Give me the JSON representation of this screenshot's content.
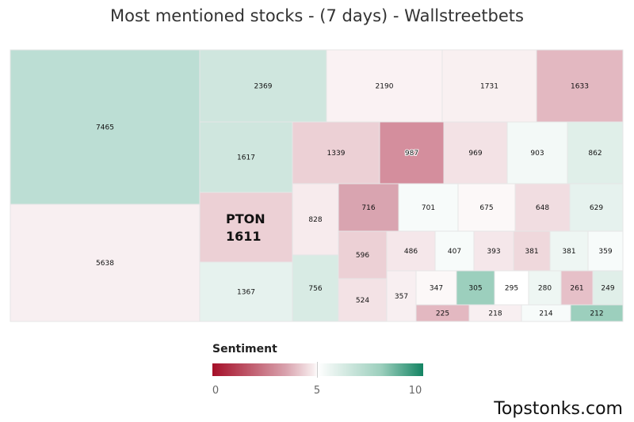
{
  "chart_data": {
    "type": "treemap",
    "title": "Most mentioned stocks - (7 days) - Wallstreetbets",
    "items": [
      {
        "label": "7465",
        "value": 7465,
        "color": "#bcded4"
      },
      {
        "label": "5638",
        "value": 5638,
        "color": "#f8eff1"
      },
      {
        "label": "2369",
        "value": 2369,
        "color": "#cfe6de"
      },
      {
        "label": "2190",
        "value": 2190,
        "color": "#faf2f3"
      },
      {
        "label": "1731",
        "value": 1731,
        "color": "#f9f0f1"
      },
      {
        "label": "1633",
        "value": 1633,
        "color": "#e3b8c1"
      },
      {
        "label": "1617",
        "value": 1617,
        "color": "#cfe6de"
      },
      {
        "label": "1611",
        "name": "PTON",
        "value": 1611,
        "color": "#ecd0d5"
      },
      {
        "label": "1367",
        "value": 1367,
        "color": "#e6f2ee"
      },
      {
        "label": "1339",
        "value": 1339,
        "color": "#ecd0d5"
      },
      {
        "label": "987",
        "value": 987,
        "color": "#d48e9d"
      },
      {
        "label": "969",
        "value": 969,
        "color": "#f3e2e5"
      },
      {
        "label": "903",
        "value": 903,
        "color": "#f3f9f7"
      },
      {
        "label": "862",
        "value": 862,
        "color": "#e0efe9"
      },
      {
        "label": "828",
        "value": 828,
        "color": "#f7ebed"
      },
      {
        "label": "756",
        "value": 756,
        "color": "#d8ebe4"
      },
      {
        "label": "716",
        "value": 716,
        "color": "#d9a4b0"
      },
      {
        "label": "701",
        "value": 701,
        "color": "#f7fbfa"
      },
      {
        "label": "675",
        "value": 675,
        "color": "#fcf8f8"
      },
      {
        "label": "648",
        "value": 648,
        "color": "#f1dde1"
      },
      {
        "label": "629",
        "value": 629,
        "color": "#e6f2ee"
      },
      {
        "label": "596",
        "value": 596,
        "color": "#ecd0d5"
      },
      {
        "label": "524",
        "value": 524,
        "color": "#f3e2e5"
      },
      {
        "label": "486",
        "value": 486,
        "color": "#f5e7ea"
      },
      {
        "label": "407",
        "value": 407,
        "color": "#f7fbfa"
      },
      {
        "label": "393",
        "value": 393,
        "color": "#f5e7ea"
      },
      {
        "label": "381",
        "value": 381,
        "color": "#efd8dc"
      },
      {
        "label": "381",
        "value": 381,
        "color": "#eef6f3"
      },
      {
        "label": "359",
        "value": 359,
        "color": "#f7fbfa"
      },
      {
        "label": "357",
        "value": 357,
        "color": "#f8eff1"
      },
      {
        "label": "347",
        "value": 347,
        "color": "#fcf8f8"
      },
      {
        "label": "305",
        "value": 305,
        "color": "#9ccfbd"
      },
      {
        "label": "295",
        "value": 295,
        "color": "#ffffff"
      },
      {
        "label": "280",
        "value": 280,
        "color": "#eef6f3"
      },
      {
        "label": "261",
        "value": 261,
        "color": "#e6c0c8"
      },
      {
        "label": "249",
        "value": 249,
        "color": "#e0efe9"
      },
      {
        "label": "225",
        "value": 225,
        "color": "#e3b8c1"
      },
      {
        "label": "218",
        "value": 218,
        "color": "#f8eff1"
      },
      {
        "label": "214",
        "value": 214,
        "color": "#f7fbfa"
      },
      {
        "label": "212",
        "value": 212,
        "color": "#9ccfbd"
      }
    ],
    "legend": {
      "title": "Sentiment",
      "min": 0,
      "mid": 5,
      "max": 10,
      "ticks": [
        "0",
        "5",
        "10"
      ],
      "color_low": "#a50f28",
      "color_mid": "#ffffff",
      "color_high": "#148463"
    }
  },
  "brand": "Topstonks.com"
}
